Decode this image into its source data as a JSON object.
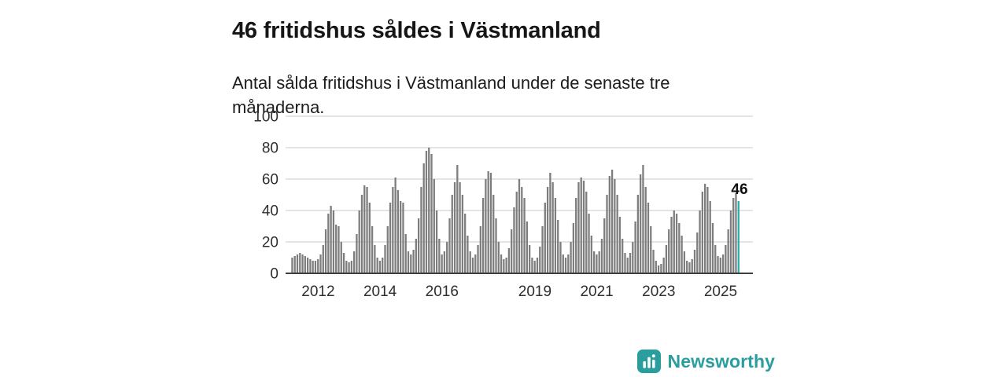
{
  "header": {
    "title": "46 fritidshus såldes i Västmanland",
    "subtitle": "Antal sålda fritidshus i Västmanland under de senaste tre månaderna."
  },
  "branding": {
    "name": "Newsworthy"
  },
  "colors": {
    "bar": "#7d7d7d",
    "highlight": "#29abab",
    "brand": "#2a9d9f",
    "grid": "#dcdcdc",
    "axis": "#3d3d3d"
  },
  "chart_data": {
    "type": "bar",
    "title": "46 fritidshus såldes i Västmanland",
    "xlabel": "",
    "ylabel": "",
    "ylim": [
      0,
      100
    ],
    "yticks": [
      0,
      20,
      40,
      60,
      80,
      100
    ],
    "xticks": [
      2012,
      2014,
      2016,
      2019,
      2021,
      2023,
      2025
    ],
    "start": "2011-03",
    "frequency": "monthly",
    "annotation": "46",
    "values": [
      10,
      11,
      12,
      13,
      12,
      11,
      10,
      9,
      8,
      8,
      9,
      12,
      18,
      28,
      38,
      43,
      40,
      31,
      30,
      20,
      13,
      8,
      7,
      8,
      14,
      25,
      40,
      50,
      56,
      55,
      45,
      30,
      18,
      10,
      8,
      10,
      18,
      30,
      45,
      55,
      61,
      53,
      46,
      45,
      25,
      14,
      12,
      15,
      22,
      35,
      55,
      70,
      78,
      80,
      76,
      60,
      40,
      22,
      12,
      14,
      20,
      35,
      50,
      58,
      69,
      58,
      50,
      38,
      24,
      14,
      10,
      12,
      18,
      30,
      48,
      60,
      65,
      64,
      50,
      35,
      20,
      12,
      9,
      10,
      16,
      28,
      42,
      52,
      60,
      55,
      48,
      33,
      18,
      10,
      8,
      10,
      17,
      30,
      45,
      55,
      64,
      58,
      48,
      34,
      20,
      12,
      10,
      12,
      20,
      32,
      48,
      58,
      61,
      59,
      52,
      38,
      24,
      14,
      12,
      14,
      22,
      35,
      50,
      62,
      66,
      60,
      50,
      36,
      22,
      13,
      10,
      13,
      20,
      33,
      50,
      63,
      69,
      55,
      45,
      30,
      15,
      8,
      5,
      6,
      10,
      18,
      28,
      36,
      40,
      38,
      32,
      24,
      14,
      8,
      7,
      9,
      15,
      26,
      40,
      52,
      57,
      55,
      46,
      32,
      18,
      11,
      10,
      12,
      18,
      28,
      40,
      48,
      51,
      46
    ]
  }
}
